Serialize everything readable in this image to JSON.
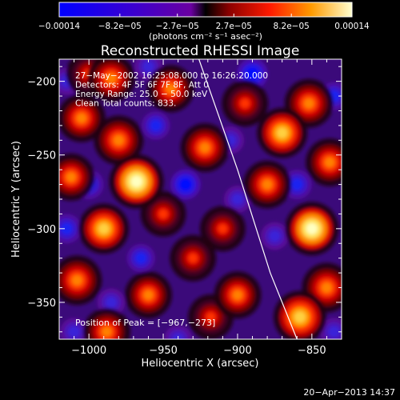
{
  "chart_data": {
    "type": "heatmap",
    "title": "Reconstructed RHESSI Image",
    "xlabel": "Heliocentric X (arcsec)",
    "ylabel": "Heliocentric Y (arcsec)",
    "xlim": [
      -1020,
      -830
    ],
    "ylim": [
      -375,
      -185
    ],
    "x_ticks": [
      -1000,
      -950,
      -900,
      -850
    ],
    "x_tick_labels": [
      "−1000",
      "−950",
      "−900",
      "−850"
    ],
    "y_ticks": [
      -200,
      -250,
      -300,
      -350
    ],
    "y_tick_labels": [
      "−200",
      "−250",
      "−300",
      "−350"
    ],
    "colorbar": {
      "range": [
        -0.00014,
        0.00014
      ],
      "ticks": [
        -0.00014,
        -8.2e-05,
        -2.7e-05,
        2.7e-05,
        8.2e-05,
        0.00014
      ],
      "tick_labels": [
        "−0.00014",
        "−8.2e−05",
        "−2.7e−05",
        "2.7e−05",
        "8.2e−05",
        "0.00014"
      ],
      "units": "(photons cm⁻² s⁻¹ asec⁻²)"
    },
    "annotations": [
      "27−May−2002 16:25:08.000 to 16:26:20.000",
      "Detectors: 4F 5F 6F 7F 8F, Att 0",
      "Energy Range: 25.0 − 50.0 keV",
      "Clean    Total counts: 833."
    ],
    "peak_label": "Position of Peak = [−967,−273]",
    "peak": [
      -967,
      -273
    ],
    "limb_curve": [
      [
        -926,
        -185
      ],
      [
        -900,
        -260
      ],
      [
        -878,
        -330
      ],
      [
        -860,
        -375
      ]
    ],
    "blobs": [
      {
        "x": -968,
        "y": -268,
        "v": 1.0
      },
      {
        "x": -980,
        "y": -240,
        "v": 0.7
      },
      {
        "x": -990,
        "y": -300,
        "v": 0.75
      },
      {
        "x": -945,
        "y": -205,
        "v": 0.55
      },
      {
        "x": -985,
        "y": -198,
        "v": 0.6
      },
      {
        "x": -1005,
        "y": -225,
        "v": 0.6
      },
      {
        "x": -1012,
        "y": -265,
        "v": 0.55
      },
      {
        "x": -1008,
        "y": -335,
        "v": 0.7
      },
      {
        "x": -988,
        "y": -370,
        "v": 0.55
      },
      {
        "x": -960,
        "y": -345,
        "v": 0.55
      },
      {
        "x": -930,
        "y": -320,
        "v": 0.5
      },
      {
        "x": -922,
        "y": -245,
        "v": 0.65
      },
      {
        "x": -910,
        "y": -300,
        "v": 0.45
      },
      {
        "x": -918,
        "y": -360,
        "v": 0.45
      },
      {
        "x": -895,
        "y": -215,
        "v": 0.5
      },
      {
        "x": -880,
        "y": -270,
        "v": 0.6
      },
      {
        "x": -870,
        "y": -235,
        "v": 0.75
      },
      {
        "x": -852,
        "y": -215,
        "v": 0.65
      },
      {
        "x": -838,
        "y": -255,
        "v": 0.6
      },
      {
        "x": -850,
        "y": -300,
        "v": 0.95
      },
      {
        "x": -840,
        "y": -340,
        "v": 0.7
      },
      {
        "x": -858,
        "y": -360,
        "v": 0.9
      },
      {
        "x": -900,
        "y": -345,
        "v": 0.55
      },
      {
        "x": -1000,
        "y": -195,
        "v": 0.45
      },
      {
        "x": -950,
        "y": -290,
        "v": 0.45
      },
      {
        "x": -955,
        "y": -230,
        "v": -0.6
      },
      {
        "x": -935,
        "y": -270,
        "v": -0.75
      },
      {
        "x": -1000,
        "y": -270,
        "v": -0.7
      },
      {
        "x": -1015,
        "y": -300,
        "v": -0.7
      },
      {
        "x": -965,
        "y": -320,
        "v": -0.6
      },
      {
        "x": -985,
        "y": -350,
        "v": -0.55
      },
      {
        "x": -1010,
        "y": -370,
        "v": -0.55
      },
      {
        "x": -890,
        "y": -195,
        "v": -0.8
      },
      {
        "x": -905,
        "y": -240,
        "v": -0.55
      },
      {
        "x": -900,
        "y": -280,
        "v": -0.5
      },
      {
        "x": -875,
        "y": -305,
        "v": -0.55
      },
      {
        "x": -860,
        "y": -270,
        "v": -0.7
      },
      {
        "x": -835,
        "y": -210,
        "v": -0.6
      },
      {
        "x": -835,
        "y": -370,
        "v": -0.55
      },
      {
        "x": -940,
        "y": -375,
        "v": -0.55
      },
      {
        "x": -1015,
        "y": -200,
        "v": -0.5
      },
      {
        "x": -960,
        "y": -190,
        "v": -0.55
      }
    ]
  },
  "footer": {
    "timestamp": "20−Apr−2013 14:37"
  }
}
